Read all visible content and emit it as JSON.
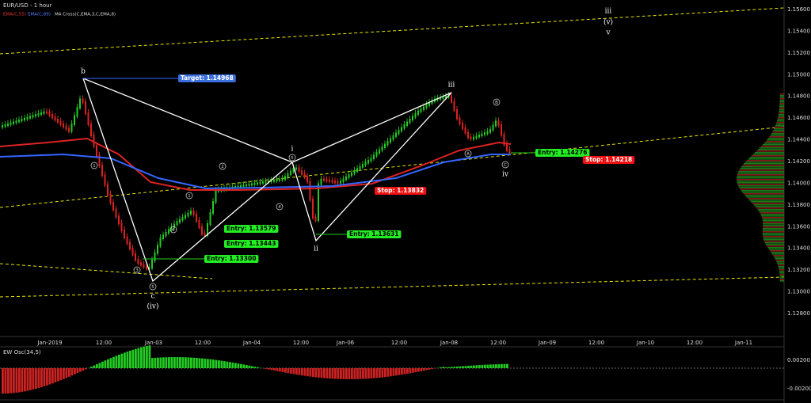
{
  "header": {
    "title": "EUR/USD - 1 hour",
    "indicators": [
      "EMA(C,55)",
      "EMA(C,89)",
      "MA Cross(C,EMA,3,C,EMA,8)"
    ]
  },
  "price_axis": {
    "labels": [
      "1.15600",
      "1.15400",
      "1.15200",
      "1.15000",
      "1.14800",
      "1.14600",
      "1.14400",
      "1.14200",
      "1.14000",
      "1.13800",
      "1.13600",
      "1.13400",
      "1.13200",
      "1.13000",
      "1.12800"
    ]
  },
  "time_axis": {
    "labels": [
      "Jan-2019",
      "12:00",
      "Jan-03",
      "12:00",
      "Jan-04",
      "12:00",
      "Jan-06",
      "12:00",
      "Jan-08",
      "12:00",
      "Jan-09",
      "12:00",
      "Jan-10",
      "12:00",
      "Jan-11"
    ]
  },
  "annotations": [
    "Target: 1.14968",
    "Entry: 1.13579",
    "Entry: 1.13443",
    "Entry: 1.13300",
    "Entry: 1.13631",
    "Stop: 1.13832",
    "Entry: 1.14276",
    "Stop: 1.14218"
  ],
  "wave_labels": [
    "b",
    "i",
    "iii",
    "iv",
    "c",
    "(iv)",
    "ii",
    "(v)",
    "v",
    "iii"
  ],
  "wave_markers": [
    "1",
    "2",
    "3",
    "4",
    "5",
    "5",
    "4",
    "1",
    "A",
    "B",
    "C"
  ],
  "oscillator": {
    "title": "EW Osc(34,5)",
    "labels": [
      "0.00200",
      "-0.00200"
    ]
  }
}
